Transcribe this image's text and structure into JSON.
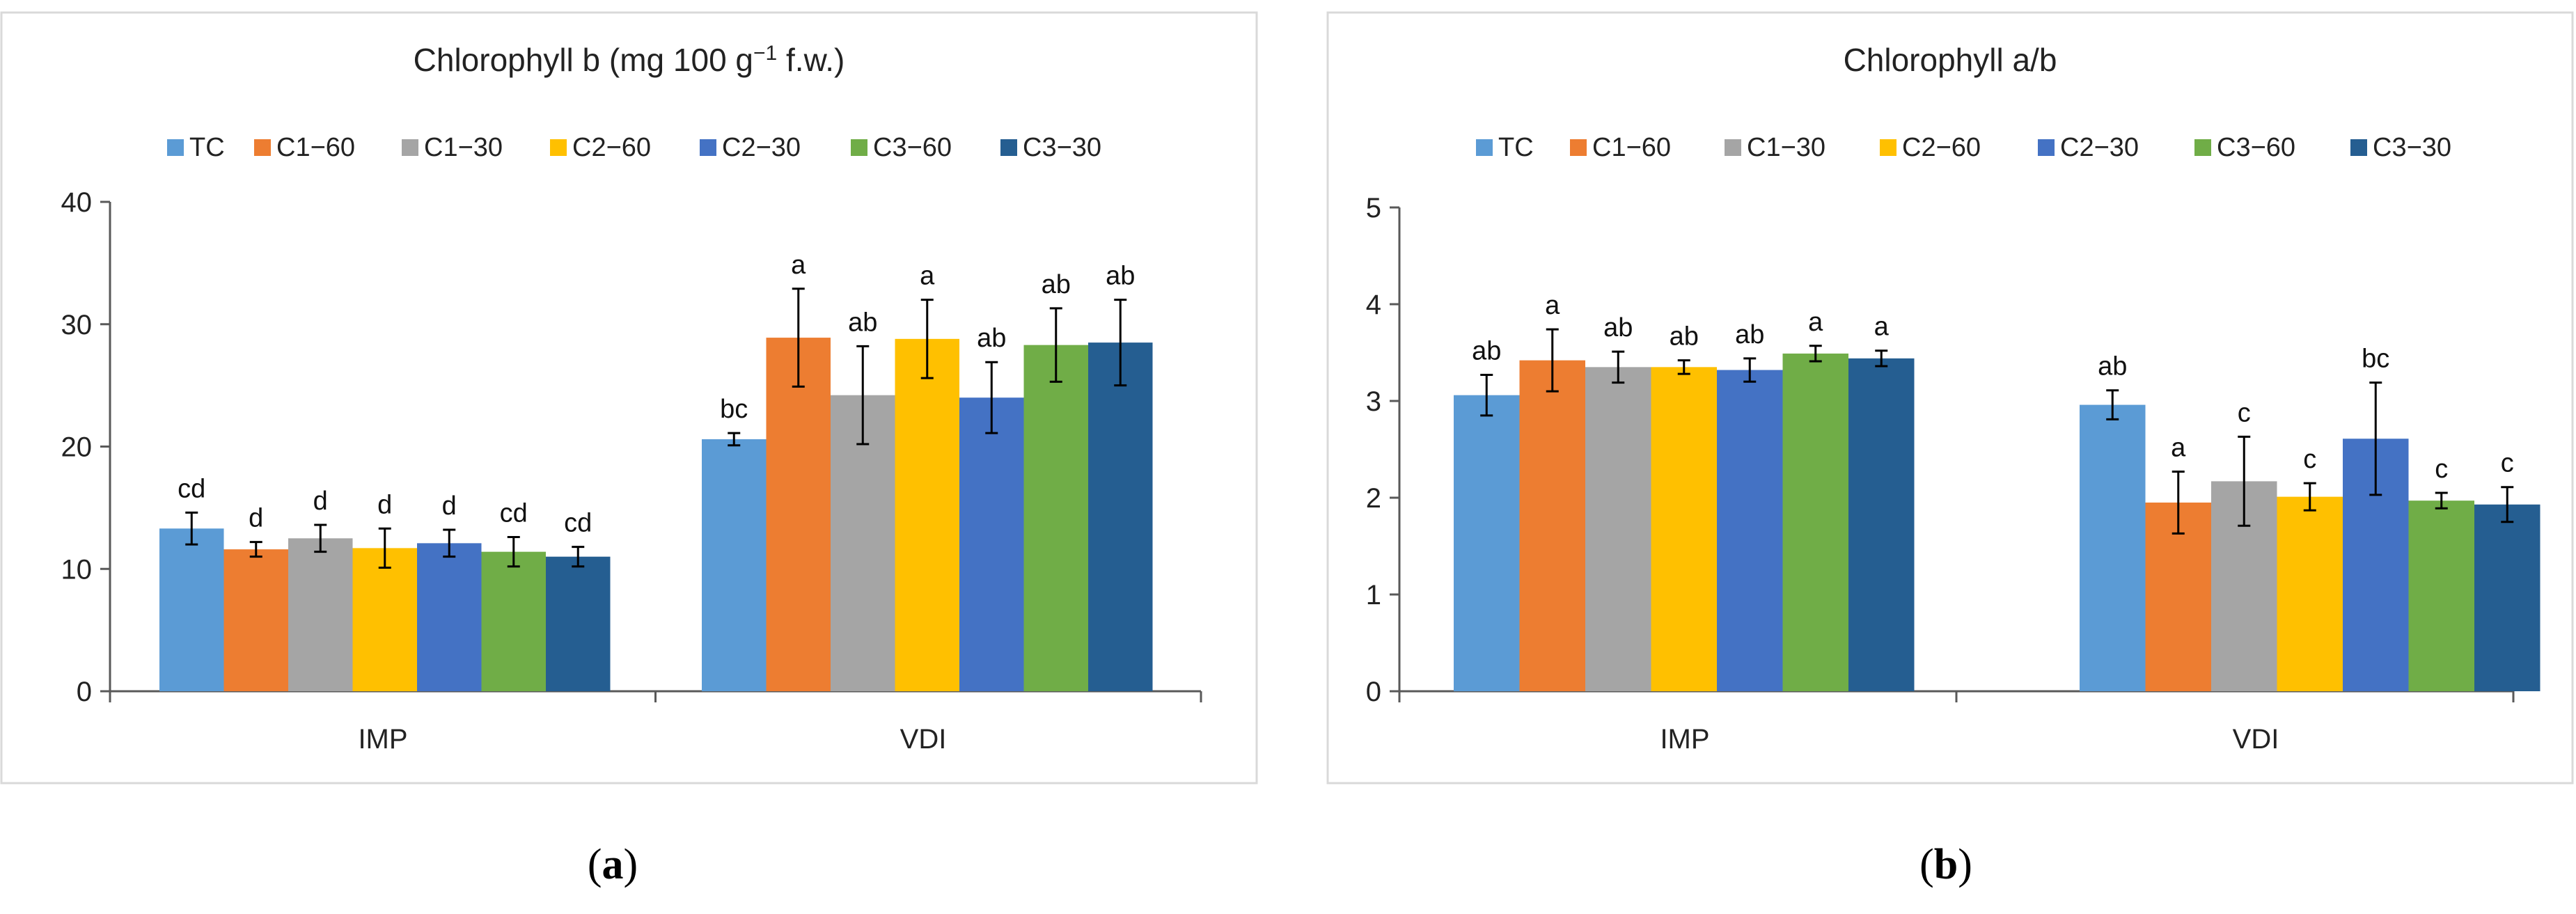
{
  "chart_data": [
    {
      "type": "bar",
      "panel_label": "a",
      "title": "Chlorophyll b (mg 100 g",
      "title_sup": "−1",
      "title_suffix": " f.w.)",
      "categories": [
        "IMP",
        "VDI"
      ],
      "ylim": [
        0,
        40
      ],
      "yticks": [
        0,
        10,
        20,
        30,
        40
      ],
      "legend_position": "top",
      "grid": false,
      "series": [
        {
          "name": "TC",
          "color": "#5B9BD5",
          "values": [
            13.3,
            20.6
          ],
          "errors": [
            1.3,
            0.5
          ],
          "letters": [
            "cd",
            "bc"
          ]
        },
        {
          "name": "C1−60",
          "color": "#ED7D31",
          "values": [
            11.6,
            28.9
          ],
          "errors": [
            0.6,
            4.0
          ],
          "letters": [
            "d",
            "a"
          ]
        },
        {
          "name": "C1−30",
          "color": "#A5A5A5",
          "values": [
            12.5,
            24.2
          ],
          "errors": [
            1.1,
            4.0
          ],
          "letters": [
            "d",
            "ab"
          ]
        },
        {
          "name": "C2−60",
          "color": "#FFC000",
          "values": [
            11.7,
            28.8
          ],
          "errors": [
            1.6,
            3.2
          ],
          "letters": [
            "d",
            "a"
          ]
        },
        {
          "name": "C2−30",
          "color": "#4472C4",
          "values": [
            12.1,
            24.0
          ],
          "errors": [
            1.1,
            2.9
          ],
          "letters": [
            "d",
            "ab"
          ]
        },
        {
          "name": "C3−60",
          "color": "#70AD47",
          "values": [
            11.4,
            28.3
          ],
          "errors": [
            1.2,
            3.0
          ],
          "letters": [
            "cd",
            "ab"
          ]
        },
        {
          "name": "C3−30",
          "color": "#255E91",
          "values": [
            11.0,
            28.5
          ],
          "errors": [
            0.8,
            3.5
          ],
          "letters": [
            "cd",
            "ab"
          ]
        }
      ]
    },
    {
      "type": "bar",
      "panel_label": "b",
      "title": "Chlorophyll a/b",
      "title_sup": "",
      "title_suffix": "",
      "categories": [
        "IMP",
        "VDI"
      ],
      "ylim": [
        0,
        5
      ],
      "yticks": [
        0,
        1,
        2,
        3,
        4,
        5
      ],
      "legend_position": "top",
      "grid": false,
      "series": [
        {
          "name": "TC",
          "color": "#5B9BD5",
          "values": [
            3.06,
            2.96
          ],
          "errors": [
            0.21,
            0.15
          ],
          "letters": [
            "ab",
            "ab"
          ]
        },
        {
          "name": "C1−60",
          "color": "#ED7D31",
          "values": [
            3.42,
            1.95
          ],
          "errors": [
            0.32,
            0.32
          ],
          "letters": [
            "a",
            "a"
          ]
        },
        {
          "name": "C1−30",
          "color": "#A5A5A5",
          "values": [
            3.35,
            2.17
          ],
          "errors": [
            0.16,
            0.46
          ],
          "letters": [
            "ab",
            "c"
          ]
        },
        {
          "name": "C2−60",
          "color": "#FFC000",
          "values": [
            3.35,
            2.01
          ],
          "errors": [
            0.07,
            0.14
          ],
          "letters": [
            "ab",
            "c"
          ]
        },
        {
          "name": "C2−30",
          "color": "#4472C4",
          "values": [
            3.32,
            2.61
          ],
          "errors": [
            0.12,
            0.58
          ],
          "letters": [
            "ab",
            "bc"
          ]
        },
        {
          "name": "C3−60",
          "color": "#70AD47",
          "values": [
            3.49,
            1.97
          ],
          "errors": [
            0.08,
            0.08
          ],
          "letters": [
            "a",
            "c"
          ]
        },
        {
          "name": "C3−30",
          "color": "#255E91",
          "values": [
            3.44,
            1.93
          ],
          "errors": [
            0.08,
            0.18
          ],
          "letters": [
            "a",
            "c"
          ]
        }
      ]
    }
  ]
}
